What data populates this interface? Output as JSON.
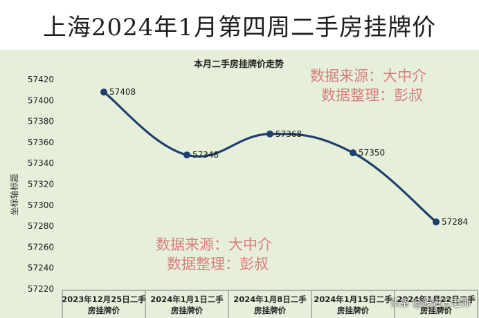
{
  "header": {
    "title": "上海2024年1月第四周二手房挂牌价"
  },
  "watermarks": [
    {
      "line1": "数据来源：大中介",
      "line2": "数据整理：彭叔"
    },
    {
      "line1": "数据来源：大中介",
      "line2": "数据整理：彭叔"
    }
  ],
  "footer": {
    "source_tag": "头条 @股道王老师"
  },
  "colors": {
    "line": "#1f3f6e",
    "title_band": "#ffffff",
    "plot_bg": "#e6efda",
    "watermark": "#d77f7f"
  },
  "chart_data": {
    "type": "line",
    "title": "本月二手房挂牌价走势",
    "ylabel": "坐标轴标题",
    "xlabel": "",
    "categories": [
      "2023年12月25日二手房挂牌价",
      "2024年1月1日二手房挂牌价",
      "2024年1月8日二手房挂牌价",
      "2024年1月15日二手房挂牌价",
      "2024年1月22日二手房挂牌价"
    ],
    "values": [
      57408,
      57348,
      57368,
      57350,
      57284
    ],
    "data_labels": [
      "57408",
      "57348",
      "57368",
      "57350",
      "57284"
    ],
    "ylim": [
      57220,
      57420
    ],
    "yticks": [
      57220,
      57240,
      57260,
      57280,
      57300,
      57320,
      57340,
      57360,
      57380,
      57400,
      57420
    ],
    "ytick_labels": [
      "57220",
      "57240",
      "57260",
      "57280",
      "57300",
      "57320",
      "57340",
      "57360",
      "57380",
      "57400",
      "57420"
    ],
    "grid": false,
    "legend": "none",
    "smooth": true
  }
}
